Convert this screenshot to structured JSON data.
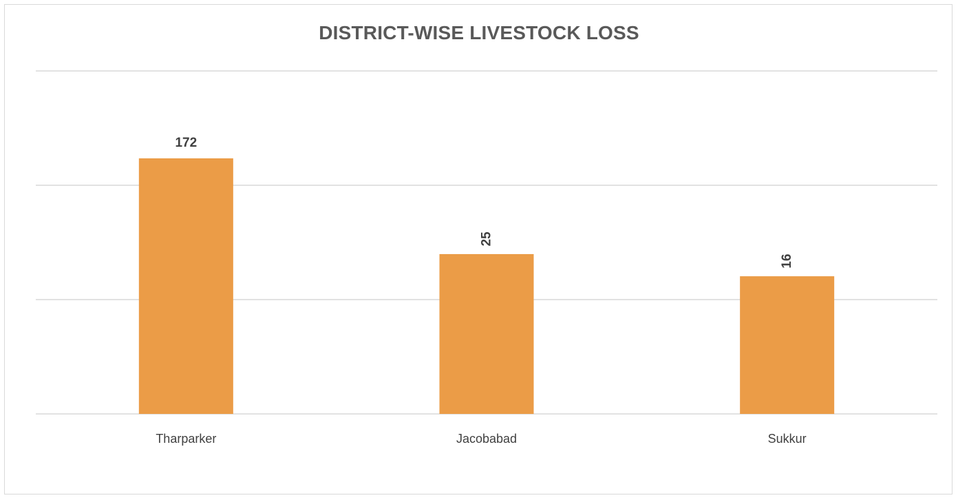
{
  "chart_data": {
    "type": "bar",
    "title": "DISTRICT-WISE LIVESTOCK LOSS",
    "categories": [
      "Tharparker",
      "Jacobabad",
      "Sukkur"
    ],
    "values": [
      172,
      25,
      16
    ],
    "xlabel": "",
    "ylabel": "",
    "y_scale": "log",
    "ylim": [
      1,
      1000
    ],
    "grid": true,
    "legend": "none",
    "bar_color": "#EB9C47",
    "data_label_orientation": [
      "horizontal",
      "vertical",
      "vertical"
    ]
  }
}
